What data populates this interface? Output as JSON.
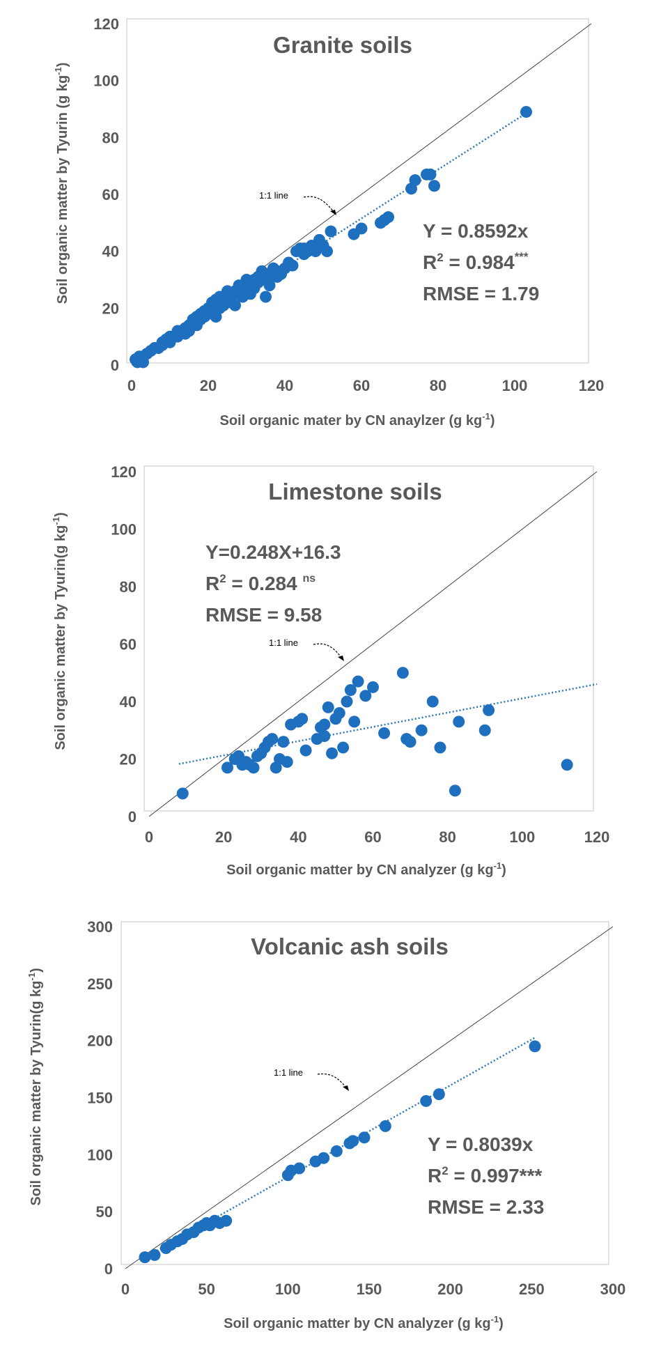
{
  "chart_data": [
    {
      "type": "scatter",
      "title": "Granite soils",
      "xlabel": "Soil organic mater by CN anaylzer (g kg",
      "xlabel_unit_sup": "-1",
      "xlabel_close": ")",
      "ylabel": "Soil organic matter by Tyurin (g kg",
      "ylabel_unit_sup": "-1",
      "ylabel_close": ")",
      "xlim": [
        0,
        120
      ],
      "ylim": [
        0,
        120
      ],
      "xticks": [
        "0",
        "20",
        "40",
        "60",
        "80",
        "100",
        "120"
      ],
      "yticks": [
        "0",
        "20",
        "40",
        "60",
        "80",
        "100",
        "120"
      ],
      "equation": "Y = 0.8592x",
      "r2_prefix": "R",
      "r2_sup": "2",
      "r2_value": " = 0.984",
      "r2_signif": "***",
      "rmse": "RMSE = 1.79",
      "ref_line_label": "1:1  line",
      "trendline": {
        "slope": 0.8592,
        "intercept": 0,
        "x_range": [
          1,
          103
        ]
      },
      "x": [
        1,
        1.5,
        2,
        2.5,
        3,
        3,
        4,
        5,
        6,
        7,
        8,
        8,
        9,
        10,
        10,
        11,
        12,
        12,
        13,
        14,
        14,
        15,
        15,
        16,
        16,
        17,
        17,
        18,
        18,
        19,
        19,
        20,
        20,
        21,
        21,
        22,
        22,
        22,
        23,
        23,
        23,
        24,
        24,
        25,
        25,
        25,
        26,
        26,
        27,
        27,
        28,
        28,
        29,
        29,
        30,
        30,
        30,
        31,
        31,
        32,
        32,
        33,
        33,
        34,
        34,
        35,
        35,
        36,
        36,
        37,
        37,
        38,
        38,
        39,
        40,
        41,
        42,
        43,
        44,
        45,
        45,
        46,
        47,
        48,
        49,
        50,
        51,
        52,
        58,
        60,
        65,
        66,
        67,
        73,
        74,
        77,
        78,
        79,
        103
      ],
      "y": [
        2,
        1,
        3,
        2,
        1,
        3,
        4,
        5,
        6,
        6,
        7,
        8,
        9,
        8,
        10,
        10,
        10,
        12,
        12,
        13,
        11,
        14,
        12,
        16,
        15,
        17,
        14,
        18,
        16,
        19,
        17,
        20,
        18,
        22,
        19,
        21,
        23,
        17,
        22,
        24,
        20,
        23,
        21,
        24,
        22,
        26,
        25,
        23,
        26,
        21,
        28,
        25,
        27,
        24,
        28,
        26,
        30,
        29,
        25,
        30,
        27,
        31,
        29,
        33,
        30,
        24,
        32,
        31,
        28,
        33,
        34,
        33,
        31,
        32,
        34,
        36,
        35,
        40,
        41,
        41,
        39,
        40,
        42,
        40,
        44,
        42,
        40,
        47,
        46,
        48,
        50,
        51,
        52,
        62,
        65,
        67,
        67,
        63,
        89
      ]
    },
    {
      "type": "scatter",
      "title": "Limestone soils",
      "xlabel": "Soil organic matter by CN analyzer (g kg",
      "xlabel_unit_sup": "-1",
      "xlabel_close": ")",
      "ylabel": "Soil organic matter by Tyurin(g kg",
      "ylabel_unit_sup": "-1",
      "ylabel_close": ")",
      "xlim": [
        0,
        120
      ],
      "ylim": [
        0,
        120
      ],
      "xticks": [
        "0",
        "20",
        "40",
        "60",
        "80",
        "100",
        "120"
      ],
      "yticks": [
        "0",
        "20",
        "40",
        "60",
        "80",
        "100",
        "120"
      ],
      "equation": "Y=0.248X+16.3",
      "r2_prefix": "R",
      "r2_sup": "2",
      "r2_value": " = 0.284 ",
      "r2_signif": "ns",
      "rmse": "RMSE = 9.58",
      "ref_line_label": "1:1  line",
      "trendline": {
        "slope": 0.248,
        "intercept": 16.3,
        "x_range": [
          8,
          120
        ]
      },
      "x": [
        9,
        21,
        23,
        24,
        25,
        26,
        27,
        28,
        29,
        30,
        31,
        32,
        33,
        34,
        35,
        36,
        37,
        38,
        40,
        41,
        42,
        45,
        46,
        47,
        47,
        48,
        49,
        50,
        51,
        52,
        53,
        54,
        55,
        56,
        58,
        60,
        63,
        68,
        69,
        70,
        73,
        76,
        78,
        82,
        83,
        90,
        91,
        112
      ],
      "y": [
        8,
        17,
        20,
        21,
        18,
        19,
        18,
        17,
        21,
        22,
        24,
        26,
        27,
        17,
        20,
        26,
        19,
        32,
        33,
        34,
        23,
        27,
        31,
        32,
        28,
        38,
        22,
        34,
        36,
        24,
        40,
        44,
        33,
        47,
        42,
        45,
        29,
        50,
        27,
        26,
        30,
        40,
        24,
        9,
        33,
        30,
        37,
        18
      ]
    },
    {
      "type": "scatter",
      "title": "Volcanic ash soils",
      "xlabel": "Soil organic matter by CN analyzer (g kg",
      "xlabel_unit_sup": "-1",
      "xlabel_close": ")",
      "ylabel": "Soil organic matter by Tyurin(g kg",
      "ylabel_unit_sup": "-1",
      "ylabel_close": ")",
      "xlim": [
        0,
        300
      ],
      "ylim": [
        0,
        300
      ],
      "xticks": [
        "0",
        "50",
        "100",
        "150",
        "200",
        "250",
        "300"
      ],
      "yticks": [
        "0",
        "50",
        "100",
        "150",
        "200",
        "250",
        "300"
      ],
      "equation": "Y = 0.8039x",
      "r2_prefix": "R",
      "r2_sup": "2",
      "r2_value": " = 0.997***",
      "r2_signif": "",
      "rmse": "RMSE = 2.33",
      "ref_line_label": "1:1  line",
      "trendline": {
        "slope": 0.8039,
        "intercept": 0,
        "x_range": [
          12,
          252
        ]
      },
      "x": [
        12,
        18,
        25,
        28,
        32,
        35,
        38,
        42,
        45,
        48,
        50,
        52,
        55,
        58,
        62,
        100,
        102,
        107,
        117,
        122,
        130,
        138,
        140,
        147,
        160,
        185,
        193,
        252
      ],
      "y": [
        10,
        12,
        18,
        21,
        24,
        26,
        30,
        32,
        36,
        38,
        40,
        38,
        42,
        40,
        42,
        82,
        86,
        88,
        94,
        97,
        103,
        110,
        112,
        115,
        125,
        147,
        153,
        195
      ]
    }
  ]
}
